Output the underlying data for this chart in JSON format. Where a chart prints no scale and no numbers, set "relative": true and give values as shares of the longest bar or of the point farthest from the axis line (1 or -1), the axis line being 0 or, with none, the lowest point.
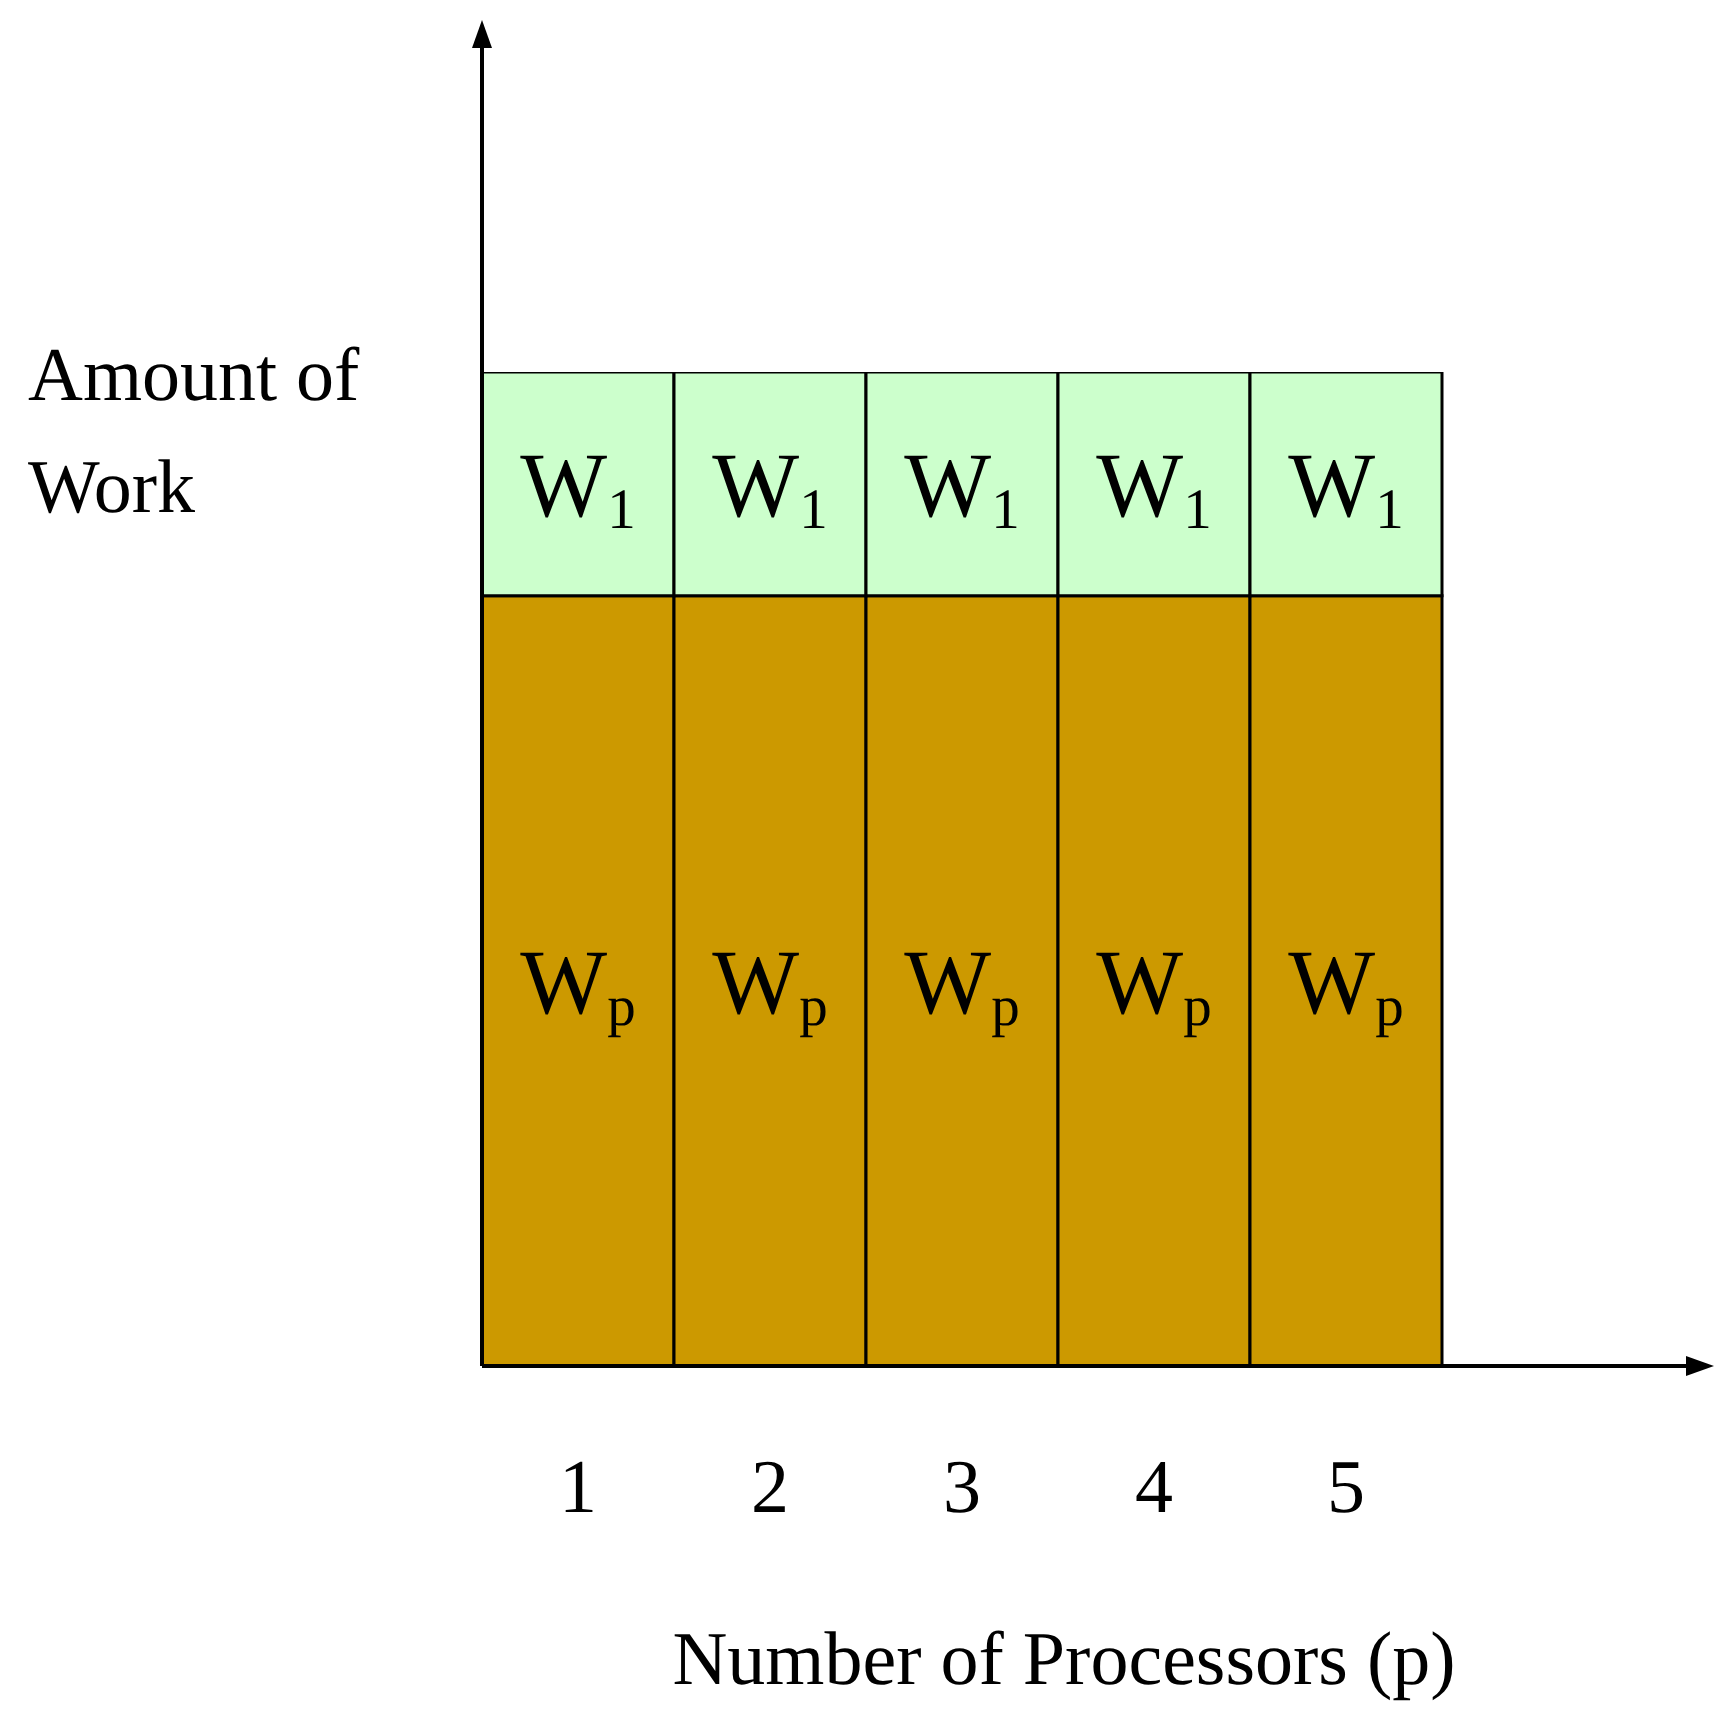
{
  "chart_data": {
    "type": "bar",
    "relative": true,
    "stacked": true,
    "xlabel": "Number of Processors (p)",
    "ylabel": "Amount of Work",
    "categories": [
      "1",
      "2",
      "3",
      "4",
      "5"
    ],
    "series": [
      {
        "name": "W$_{p}$",
        "color": "#cc9900",
        "values": [
          0.775,
          0.775,
          0.775,
          0.775,
          0.775
        ]
      },
      {
        "name": "W$_{1}$",
        "color": "#ccffcc",
        "values": [
          0.225,
          0.225,
          0.225,
          0.225,
          0.225
        ]
      }
    ]
  }
}
